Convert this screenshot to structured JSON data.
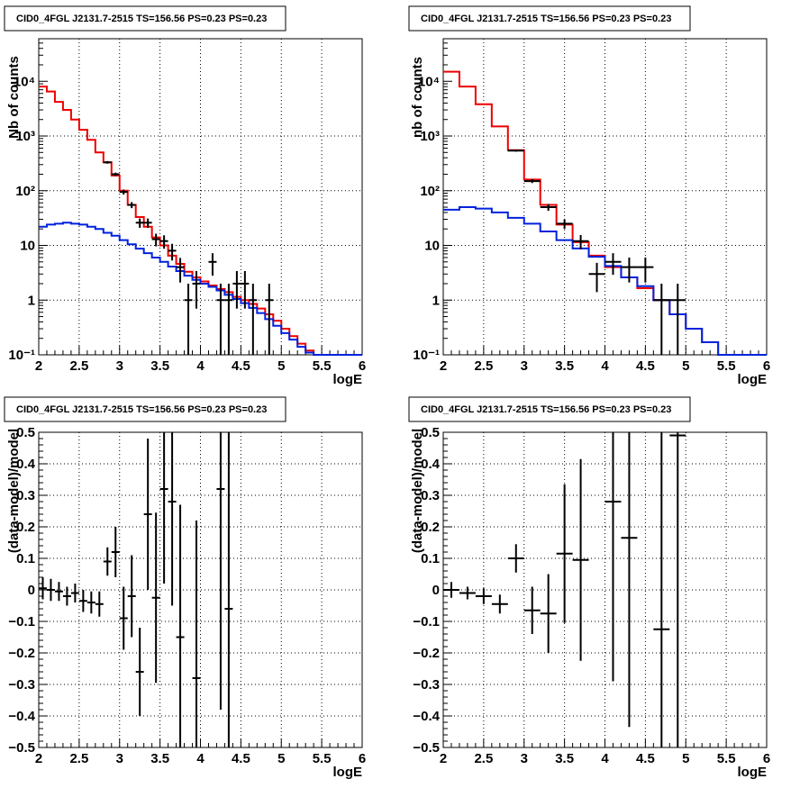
{
  "colors": {
    "data": "#000000",
    "total_model": "#ee0000",
    "background_model": "#0022dd",
    "grid": "#000000"
  },
  "chart_data": [
    {
      "panel": "top-left",
      "type": "line",
      "title": "CID0_4FGL J2131.7-2515 TS=156.56 PS=0.23 PS=0.23",
      "xlabel": "logE",
      "ylabel": "Nb of counts",
      "log_y": true,
      "grid": true,
      "xlim": [
        2,
        6
      ],
      "ylim": [
        0.1,
        60000
      ],
      "x_ticks": [
        "2",
        "2.5",
        "3",
        "3.5",
        "4",
        "4.5",
        "5",
        "5.5",
        "6"
      ],
      "y_ticks": [
        "10⁻¹",
        "1",
        "10",
        "10²",
        "10³",
        "10⁴"
      ],
      "bin_width": 0.1,
      "series": [
        {
          "kind": "model-total",
          "x": [
            2.0,
            2.1,
            2.2,
            2.3,
            2.4,
            2.5,
            2.6,
            2.7,
            2.8,
            2.9,
            3.0,
            3.1,
            3.2,
            3.3,
            3.4,
            3.5,
            3.6,
            3.7,
            3.8,
            3.9,
            4.0,
            4.1,
            4.2,
            4.3,
            4.4,
            4.5,
            4.6,
            4.7,
            4.8,
            4.9,
            5.0,
            5.1,
            5.2,
            5.3,
            5.4,
            5.5,
            5.6,
            5.7,
            5.8,
            5.9
          ],
          "values": [
            8000,
            6500,
            4200,
            3000,
            2000,
            1300,
            850,
            500,
            330,
            190,
            100,
            55,
            33,
            22,
            14,
            10,
            6.5,
            4.6,
            3.3,
            2.6,
            2.2,
            1.85,
            1.6,
            1.4,
            1.15,
            1,
            0.85,
            0.7,
            0.55,
            0.42,
            0.3,
            0.22,
            0.16,
            0.12,
            0.1,
            0.1,
            0.1,
            0.1,
            0.1,
            0.1
          ]
        },
        {
          "kind": "model-background",
          "x": [
            2.0,
            2.1,
            2.2,
            2.3,
            2.4,
            2.5,
            2.6,
            2.7,
            2.8,
            2.9,
            3.0,
            3.1,
            3.2,
            3.3,
            3.4,
            3.5,
            3.6,
            3.7,
            3.8,
            3.9,
            4.0,
            4.1,
            4.2,
            4.3,
            4.4,
            4.5,
            4.6,
            4.7,
            4.8,
            4.9,
            5.0,
            5.1,
            5.2,
            5.3,
            5.4,
            5.5,
            5.6,
            5.7,
            5.8,
            5.9
          ],
          "values": [
            22,
            24,
            25,
            26,
            25,
            24,
            22,
            20,
            17,
            15,
            12.5,
            10.5,
            8.7,
            7.2,
            6,
            5,
            4.1,
            3.4,
            2.8,
            2.35,
            2.0,
            1.75,
            1.5,
            1.25,
            1.05,
            0.88,
            0.72,
            0.58,
            0.45,
            0.34,
            0.25,
            0.19,
            0.14,
            0.11,
            0.1,
            0.1,
            0.1,
            0.1,
            0.1,
            0.1
          ]
        },
        {
          "kind": "data",
          "x": [
            2.85,
            2.95,
            3.05,
            3.15,
            3.25,
            3.35,
            3.45,
            3.55,
            3.65,
            3.75,
            3.85,
            3.95,
            4.15,
            4.25,
            4.35,
            4.45,
            4.55,
            4.65,
            4.85
          ],
          "values": [
            330,
            200,
            95,
            55,
            26,
            26,
            13,
            12,
            8,
            4,
            1,
            2,
            5,
            1,
            1,
            2,
            2,
            1,
            1
          ],
          "err_lo": [
            18,
            14,
            10,
            7,
            5,
            5,
            3.4,
            3.3,
            2.7,
            1.9,
            0.95,
            1.3,
            2.2,
            0.95,
            0.95,
            1.3,
            1.3,
            0.95,
            0.95
          ],
          "err_hi": [
            18,
            14,
            10,
            7,
            5,
            5,
            3.4,
            3.3,
            2.7,
            1.9,
            1,
            1.4,
            2.2,
            1,
            1,
            1.4,
            1.4,
            1,
            1
          ]
        }
      ]
    },
    {
      "panel": "top-right",
      "type": "line",
      "title": "CID0_4FGL J2131.7-2515 TS=156.56 PS=0.23 PS=0.23",
      "xlabel": "logE",
      "ylabel": "nb of counts",
      "log_y": true,
      "grid": true,
      "xlim": [
        2,
        6
      ],
      "ylim": [
        0.1,
        60000
      ],
      "x_ticks": [
        "2",
        "2.5",
        "3",
        "3.5",
        "4",
        "4.5",
        "5",
        "5.5",
        "6"
      ],
      "y_ticks": [
        "10⁻¹",
        "1",
        "10",
        "10²",
        "10³",
        "10⁴"
      ],
      "bin_width": 0.2,
      "series": [
        {
          "kind": "model-total",
          "x": [
            2.0,
            2.2,
            2.4,
            2.6,
            2.8,
            3.0,
            3.2,
            3.4,
            3.6,
            3.8,
            4.0,
            4.2,
            4.4,
            4.6,
            4.8,
            5.0,
            5.2,
            5.4,
            5.6,
            5.8
          ],
          "values": [
            15000,
            8000,
            3800,
            1500,
            550,
            160,
            55,
            24,
            11.5,
            6.5,
            4,
            2.6,
            1.65,
            1,
            0.55,
            0.3,
            0.17,
            0.1,
            0.1,
            0.1
          ]
        },
        {
          "kind": "model-background",
          "x": [
            2.0,
            2.2,
            2.4,
            2.6,
            2.8,
            3.0,
            3.2,
            3.4,
            3.6,
            3.8,
            4.0,
            4.2,
            4.4,
            4.6,
            4.8,
            5.0,
            5.2,
            5.4,
            5.6,
            5.8
          ],
          "values": [
            45,
            50,
            47,
            40,
            32,
            25,
            18,
            12.5,
            8.8,
            6.2,
            4.2,
            2.6,
            1.8,
            1,
            0.55,
            0.3,
            0.17,
            0.1,
            0.1,
            0.1
          ]
        },
        {
          "kind": "data",
          "x": [
            2.9,
            3.1,
            3.3,
            3.5,
            3.7,
            3.9,
            4.1,
            4.3,
            4.5,
            4.7,
            4.9
          ],
          "values": [
            540,
            150,
            50,
            25,
            12,
            3,
            5,
            4,
            4,
            1,
            1
          ],
          "err_lo": [
            23,
            12,
            7,
            5,
            3.5,
            1.6,
            2.1,
            1.9,
            1.9,
            0.95,
            0.95
          ],
          "err_hi": [
            23,
            12,
            7,
            5,
            3.5,
            1.8,
            2.2,
            2,
            2,
            1,
            1
          ]
        }
      ]
    },
    {
      "panel": "bottom-left",
      "type": "scatter",
      "title": "CID0_4FGL J2131.7-2515 TS=156.56 PS=0.23 PS=0.23",
      "xlabel": "logE",
      "ylabel": "(data-model)/model",
      "log_y": false,
      "grid": true,
      "xlim": [
        2,
        6
      ],
      "ylim": [
        -0.5,
        0.5
      ],
      "x_ticks": [
        "2",
        "2.5",
        "3",
        "3.5",
        "4",
        "4.5",
        "5",
        "5.5",
        "6"
      ],
      "y_ticks": [
        "−0.5",
        "−0.4",
        "−0.3",
        "−0.2",
        "−0.1",
        "0",
        "0.1",
        "0.2",
        "0.3",
        "0.4",
        "0.5"
      ],
      "bin_width": 0.1,
      "series": [
        {
          "kind": "residual",
          "x": [
            2.05,
            2.15,
            2.25,
            2.35,
            2.45,
            2.55,
            2.65,
            2.75,
            2.85,
            2.95,
            3.05,
            3.15,
            3.25,
            3.35,
            3.45,
            3.55,
            3.65,
            3.75,
            3.95,
            4.25,
            4.35
          ],
          "values": [
            0.005,
            0.0,
            -0.005,
            -0.02,
            -0.01,
            -0.035,
            -0.04,
            -0.045,
            0.09,
            0.12,
            -0.09,
            -0.02,
            -0.26,
            0.24,
            -0.025,
            0.32,
            0.28,
            -0.15,
            -0.28,
            0.32,
            -0.06
          ],
          "err": [
            0.035,
            0.035,
            0.03,
            0.03,
            0.03,
            0.035,
            0.035,
            0.04,
            0.045,
            0.08,
            0.1,
            0.13,
            0.14,
            0.24,
            0.27,
            0.3,
            0.33,
            0.42,
            0.5,
            0.7,
            0.9
          ]
        }
      ]
    },
    {
      "panel": "bottom-right",
      "type": "scatter",
      "title": "CID0_4FGL J2131.7-2515 TS=156.56 PS=0.23 PS=0.23",
      "xlabel": "logE",
      "ylabel": "(data-model)/model",
      "log_y": false,
      "grid": true,
      "xlim": [
        2,
        6
      ],
      "ylim": [
        -0.5,
        0.5
      ],
      "x_ticks": [
        "2",
        "2.5",
        "3",
        "3.5",
        "4",
        "4.5",
        "5",
        "5.5",
        "6"
      ],
      "y_ticks": [
        "−0.5",
        "−0.4",
        "−0.3",
        "−0.2",
        "−0.1",
        "0",
        "0.1",
        "0.2",
        "0.3",
        "0.4",
        "0.5"
      ],
      "bin_width": 0.2,
      "series": [
        {
          "kind": "residual",
          "x": [
            2.1,
            2.3,
            2.5,
            2.7,
            2.9,
            3.1,
            3.3,
            3.5,
            3.7,
            4.1,
            4.3,
            4.7,
            4.9
          ],
          "values": [
            0.0,
            -0.01,
            -0.02,
            -0.045,
            0.1,
            -0.065,
            -0.075,
            0.115,
            0.095,
            0.28,
            0.165,
            -0.125,
            0.49
          ],
          "err": [
            0.025,
            0.02,
            0.025,
            0.03,
            0.045,
            0.075,
            0.125,
            0.22,
            0.32,
            0.57,
            0.6,
            1.0,
            1.0
          ]
        }
      ]
    }
  ]
}
